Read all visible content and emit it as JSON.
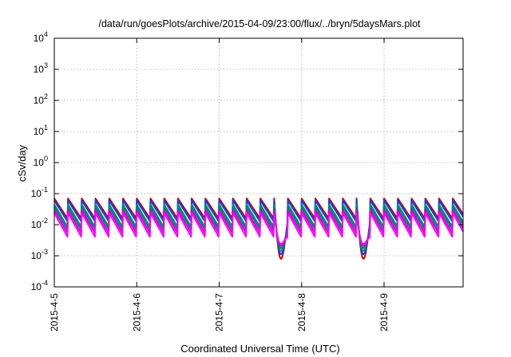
{
  "chart_data": {
    "type": "line",
    "title": "/data/run/goesPlots/archive/2015-04-09/23:00/flux/../bryn/5daysMars.plot",
    "xlabel": "Coordinated Universal Time (UTC)",
    "ylabel": "cSv/day",
    "y_scale": "log",
    "ylim": [
      0.0001,
      10000
    ],
    "xlim": [
      "2015-04-05 00:00",
      "2015-04-09 23:00"
    ],
    "x_ticks": [
      "2015-4-5",
      "2015-4-6",
      "2015-4-7",
      "2015-4-8",
      "2015-4-9"
    ],
    "y_ticks": [
      {
        "base": "10",
        "exp": "-4"
      },
      {
        "base": "10",
        "exp": "-3"
      },
      {
        "base": "10",
        "exp": "-2"
      },
      {
        "base": "10",
        "exp": "-1"
      },
      {
        "base": "10",
        "exp": "0"
      },
      {
        "base": "10",
        "exp": "1"
      },
      {
        "base": "10",
        "exp": "2"
      },
      {
        "base": "10",
        "exp": "3"
      },
      {
        "base": "10",
        "exp": "4"
      }
    ],
    "grid": true,
    "legend": "none",
    "sawtooth_period_hours": 4,
    "dips": [
      {
        "start": "2015-04-07 16:00",
        "end": "2015-04-07 20:00",
        "min_value": 0.0008
      },
      {
        "start": "2015-04-08 16:00",
        "end": "2015-04-08 20:00",
        "min_value": 0.0008
      }
    ],
    "series": [
      {
        "color": "#cc0000",
        "peak_value": 0.07,
        "base_value": 0.015
      },
      {
        "color": "#0044ff",
        "peak_value": 0.06,
        "base_value": 0.012
      },
      {
        "color": "#009060",
        "peak_value": 0.045,
        "base_value": 0.008
      },
      {
        "color": "#008080",
        "peak_value": 0.038,
        "base_value": 0.0065
      },
      {
        "color": "#cc00cc",
        "peak_value": 0.03,
        "base_value": 0.005
      },
      {
        "color": "#ff00ff",
        "peak_value": 0.024,
        "base_value": 0.0038
      }
    ]
  }
}
